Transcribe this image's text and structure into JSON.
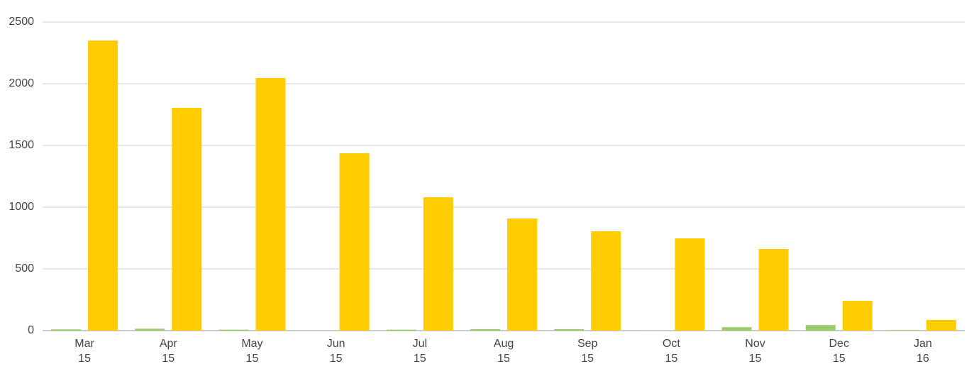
{
  "chart_data": {
    "type": "bar",
    "categories": [
      "Mar\n15",
      "Apr\n15",
      "May\n15",
      "Jun\n15",
      "Jul\n15",
      "Aug\n15",
      "Sep\n15",
      "Oct\n15",
      "Nov\n15",
      "Dec\n15",
      "Jan\n16"
    ],
    "series": [
      {
        "color": "#9bcb6d",
        "values": [
          10,
          15,
          8,
          0,
          8,
          12,
          12,
          2,
          28,
          45,
          5
        ]
      },
      {
        "color": "#ffcc00",
        "values": [
          2350,
          1805,
          2046,
          1437,
          1080,
          908,
          805,
          747,
          661,
          241,
          86
        ]
      }
    ],
    "ylim": [
      0,
      2500
    ],
    "yticks": [
      0,
      500,
      1000,
      1500,
      2000,
      2500
    ],
    "grid": true
  }
}
